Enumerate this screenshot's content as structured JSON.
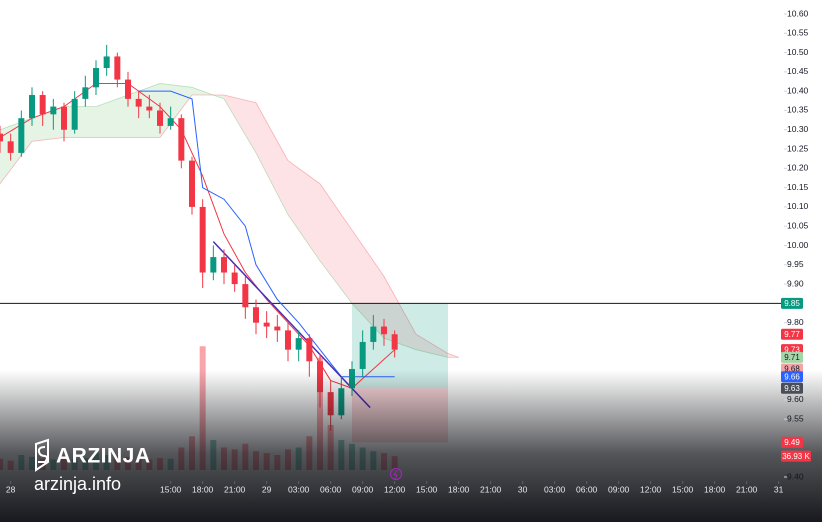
{
  "chart_data": {
    "type": "candlestick",
    "xlim": [
      -1,
      72.5
    ],
    "xticks": [
      {
        "value": 0,
        "label": "28"
      },
      {
        "value": 15,
        "label": "15:00"
      },
      {
        "value": 18,
        "label": "18:00"
      },
      {
        "value": 21,
        "label": "21:00"
      },
      {
        "value": 24,
        "label": "29"
      },
      {
        "value": 27,
        "label": "03:00"
      },
      {
        "value": 30,
        "label": "06:00"
      },
      {
        "value": 33,
        "label": "09:00"
      },
      {
        "value": 36,
        "label": "12:00"
      },
      {
        "value": 39,
        "label": "15:00"
      },
      {
        "value": 42,
        "label": "18:00"
      },
      {
        "value": 45,
        "label": "21:00"
      },
      {
        "value": 48,
        "label": "30"
      },
      {
        "value": 51,
        "label": "03:00"
      },
      {
        "value": 54,
        "label": "06:00"
      },
      {
        "value": 57,
        "label": "09:00"
      },
      {
        "value": 60,
        "label": "12:00"
      },
      {
        "value": 63,
        "label": "15:00"
      },
      {
        "value": 66,
        "label": "18:00"
      },
      {
        "value": 69,
        "label": "21:00"
      },
      {
        "value": 72,
        "label": "31"
      }
    ],
    "ylim": [
      9.2834,
      10.6363
    ],
    "yticks": [
      {
        "value": 10.6,
        "label": "10.60"
      },
      10.55,
      {
        "value": 10.5,
        "label": "10.50"
      },
      10.45,
      {
        "value": 10.4,
        "label": "10.40"
      },
      10.35,
      {
        "value": 10.3,
        "label": "10.30"
      },
      10.25,
      {
        "value": 10.2,
        "label": "10.20"
      },
      10.15,
      {
        "value": 10.1,
        "label": "10.10"
      },
      10.05,
      {
        "value": 10,
        "label": "10.00"
      },
      9.95,
      {
        "value": 9.9,
        "label": "9.90"
      },
      {
        "value": 9.8,
        "label": "9.80"
      },
      {
        "value": 9.6,
        "label": "9.60"
      },
      9.55,
      9.45,
      {
        "value": 9.4,
        "label": "9.40"
      }
    ],
    "x": [
      -1,
      0,
      1,
      2,
      3,
      4,
      5,
      6,
      7,
      8,
      9,
      10,
      11,
      12,
      13,
      14,
      15,
      16,
      17,
      18,
      19,
      20,
      21,
      22,
      23,
      24,
      25,
      26,
      27,
      28,
      29,
      30,
      31,
      32,
      33,
      34,
      35,
      36
    ],
    "open": [
      10.29,
      10.27,
      10.24,
      10.33,
      10.39,
      10.34,
      10.36,
      10.3,
      10.38,
      10.41,
      10.46,
      10.49,
      10.43,
      10.38,
      10.36,
      10.35,
      10.31,
      10.33,
      10.22,
      10.1,
      9.93,
      9.97,
      9.93,
      9.9,
      9.84,
      9.8,
      9.79,
      9.78,
      9.73,
      9.76,
      9.7,
      9.62,
      9.56,
      9.63,
      9.68,
      9.75,
      9.79,
      9.77
    ],
    "high": [
      10.31,
      10.29,
      10.35,
      10.41,
      10.4,
      10.38,
      10.37,
      10.4,
      10.44,
      10.48,
      10.52,
      10.5,
      10.45,
      10.4,
      10.39,
      10.37,
      10.36,
      10.34,
      10.23,
      10.12,
      10.0,
      9.99,
      9.95,
      9.92,
      9.86,
      9.83,
      9.82,
      9.8,
      9.78,
      9.77,
      9.72,
      9.65,
      9.66,
      9.7,
      9.78,
      9.82,
      9.81,
      9.78
    ],
    "low": [
      10.24,
      10.22,
      10.23,
      10.31,
      10.31,
      10.3,
      10.27,
      10.29,
      10.36,
      10.39,
      10.44,
      10.41,
      10.36,
      10.33,
      10.33,
      10.29,
      10.3,
      10.2,
      10.08,
      9.89,
      9.91,
      9.9,
      9.88,
      9.81,
      9.77,
      9.76,
      9.75,
      9.7,
      9.7,
      9.66,
      9.58,
      9.52,
      9.55,
      9.61,
      9.66,
      9.73,
      9.74,
      9.71
    ],
    "close": [
      10.27,
      10.24,
      10.33,
      10.39,
      10.34,
      10.36,
      10.3,
      10.38,
      10.41,
      10.46,
      10.49,
      10.43,
      10.38,
      10.36,
      10.35,
      10.31,
      10.33,
      10.22,
      10.1,
      9.93,
      9.97,
      9.93,
      9.9,
      9.84,
      9.8,
      9.79,
      9.78,
      9.73,
      9.76,
      9.7,
      9.62,
      9.56,
      9.63,
      9.68,
      9.75,
      9.79,
      9.77,
      9.73
    ],
    "up_color": "#089981",
    "down_color": "#f23645",
    "volume": {
      "values": [
        30000,
        25000,
        40000,
        35000,
        30000,
        28000,
        35000,
        30000,
        32000,
        45000,
        40000,
        38000,
        35000,
        30000,
        28000,
        32000,
        30000,
        60000,
        90000,
        330000,
        80000,
        60000,
        55000,
        70000,
        50000,
        45000,
        40000,
        55000,
        60000,
        90000,
        300000,
        120000,
        80000,
        70000,
        60000,
        50000,
        45000,
        36930
      ],
      "vlim": [
        0,
        400000
      ],
      "last": {
        "value": 36930,
        "label": "36.93 K"
      }
    },
    "lines": [
      {
        "color": "#f23645",
        "x": [
          -1,
          2,
          5,
          8,
          11,
          14,
          16,
          18,
          20,
          22,
          24,
          26,
          28,
          30,
          32,
          34,
          36
        ],
        "values": [
          10.28,
          10.33,
          10.36,
          10.42,
          10.42,
          10.36,
          10.3,
          10.18,
          10.03,
          9.93,
          9.86,
          9.8,
          9.74,
          9.65,
          9.63,
          9.68,
          9.73
        ]
      },
      {
        "color": "#2962ff",
        "x": [
          12,
          15,
          17,
          18,
          20,
          22,
          23,
          25,
          27,
          29,
          31,
          33,
          35,
          36
        ],
        "values": [
          10.4,
          10.4,
          10.38,
          10.15,
          10.12,
          10.05,
          9.95,
          9.86,
          9.8,
          9.73,
          9.66,
          9.66,
          9.66,
          9.66
        ]
      }
    ],
    "cloud": {
      "x": [
        -1,
        2,
        5,
        8,
        11,
        14,
        17,
        20,
        23,
        26,
        29,
        32,
        35,
        38,
        41,
        42
      ],
      "span_a": [
        10.3,
        10.33,
        10.36,
        10.36,
        10.39,
        10.42,
        10.41,
        10.38,
        10.24,
        10.08,
        9.96,
        9.85,
        9.76,
        9.73,
        9.71,
        9.71
      ],
      "span_b": [
        10.16,
        10.27,
        10.28,
        10.28,
        10.28,
        10.28,
        10.39,
        10.39,
        10.37,
        10.22,
        10.16,
        10.04,
        9.92,
        9.77,
        9.72,
        9.71
      ],
      "up_color": "#4caf50",
      "down_color": "#f23645"
    },
    "hline": {
      "value": 9.85,
      "color": "#131722"
    },
    "trendline": {
      "x": [
        19,
        33.7
      ],
      "y": [
        10.01,
        9.58
      ],
      "color": "#4a2fb8"
    },
    "position": {
      "x": [
        32,
        41
      ],
      "target": 9.85,
      "entry": 9.63,
      "stop": 9.49
    },
    "price_tags": [
      {
        "value": 9.85,
        "color": "#089981"
      },
      {
        "value": 9.77,
        "color": "#f23645"
      },
      {
        "value": 9.73,
        "color": "#f23645"
      },
      {
        "value": 9.71,
        "color": "#a5d6a7"
      },
      {
        "value": 9.68,
        "color": "#f5a3a9"
      },
      {
        "value": 9.66,
        "color": "#2962ff"
      },
      {
        "value": 9.63,
        "color": "#4a4e59"
      },
      {
        "value": 9.49,
        "color": "#f23645"
      }
    ]
  },
  "watermark": {
    "brand": "ARZINJA",
    "site": "arzinja.info"
  }
}
